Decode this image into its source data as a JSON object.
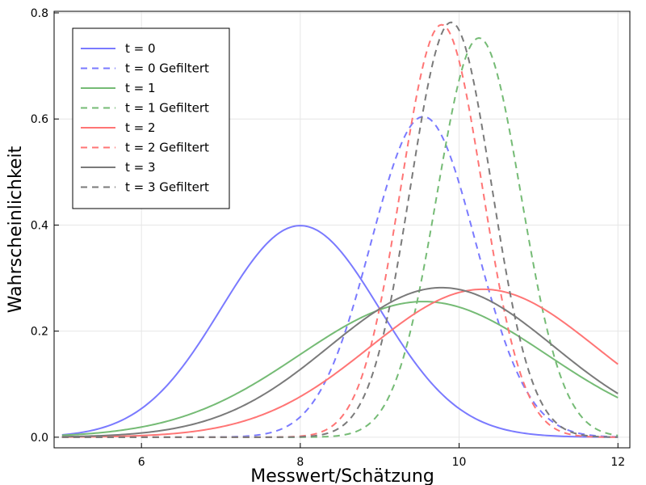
{
  "chart_data": {
    "type": "line",
    "title": "",
    "xlabel": "Messwert/Schätzung",
    "ylabel": "Wahrscheinlichkeit",
    "xlim": [
      4.9,
      12.15
    ],
    "ylim": [
      -0.02,
      0.803
    ],
    "x_ticks": [
      6,
      8,
      10,
      12
    ],
    "y_ticks": [
      0.0,
      0.2,
      0.4,
      0.6,
      0.8
    ],
    "x_tick_labels": [
      "6",
      "8",
      "10",
      "12"
    ],
    "y_tick_labels": [
      "0.0",
      "0.2",
      "0.4",
      "0.6",
      "0.8"
    ],
    "grid": true,
    "legend_position": "top-left",
    "x_range": [
      5,
      12
    ],
    "series": [
      {
        "name": "t = 0",
        "color": "#7a7aff",
        "dash": "solid",
        "distribution": "normal",
        "mean": 8.0,
        "sd": 1.0
      },
      {
        "name": "t = 0 Gefiltert",
        "color": "#7a7aff",
        "dash": "dashed",
        "distribution": "normal",
        "mean": 9.55,
        "sd": 0.66
      },
      {
        "name": "t = 1",
        "color": "#75bb75",
        "dash": "solid",
        "distribution": "normal",
        "mean": 9.55,
        "sd": 1.56
      },
      {
        "name": "t = 1 Gefiltert",
        "color": "#75bb75",
        "dash": "dashed",
        "distribution": "normal",
        "mean": 10.25,
        "sd": 0.53
      },
      {
        "name": "t = 2",
        "color": "#ff7575",
        "dash": "solid",
        "distribution": "normal",
        "mean": 10.3,
        "sd": 1.43
      },
      {
        "name": "t = 2 Gefiltert",
        "color": "#ff7575",
        "dash": "dashed",
        "distribution": "normal",
        "mean": 9.78,
        "sd": 0.513
      },
      {
        "name": "t = 3",
        "color": "#7a7a7a",
        "dash": "solid",
        "distribution": "normal",
        "mean": 9.78,
        "sd": 1.415
      },
      {
        "name": "t = 3 Gefiltert",
        "color": "#7a7a7a",
        "dash": "dashed",
        "distribution": "normal",
        "mean": 9.9,
        "sd": 0.51
      }
    ]
  }
}
